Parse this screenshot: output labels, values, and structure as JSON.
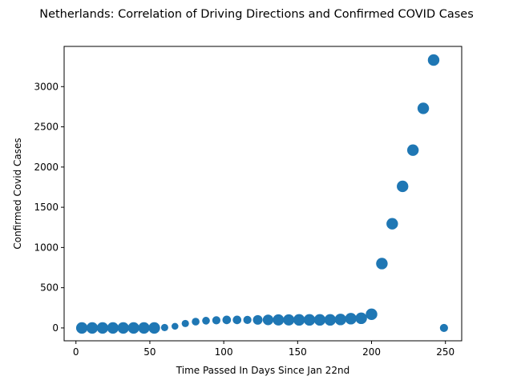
{
  "chart_data": {
    "type": "scatter",
    "title": "Netherlands: Correlation of Driving Directions and Confirmed COVID Cases",
    "xlabel": "Time Passed In Days Since Jan 22nd",
    "ylabel": "Confirmed Covid Cases",
    "xlim": [
      -8,
      261
    ],
    "ylim": [
      -160,
      3500
    ],
    "xticks": [
      0,
      50,
      100,
      150,
      200,
      250
    ],
    "yticks": [
      0,
      500,
      1000,
      1500,
      2000,
      2500,
      3000
    ],
    "grid": false,
    "marker_color": "#1f77b4",
    "points": [
      {
        "x": 4,
        "y": 0,
        "size": 1.0
      },
      {
        "x": 11,
        "y": 0,
        "size": 1.0
      },
      {
        "x": 18,
        "y": 0,
        "size": 1.0
      },
      {
        "x": 25,
        "y": 0,
        "size": 1.0
      },
      {
        "x": 32,
        "y": 0,
        "size": 1.0
      },
      {
        "x": 39,
        "y": 0,
        "size": 1.0
      },
      {
        "x": 46,
        "y": 0,
        "size": 1.0
      },
      {
        "x": 53,
        "y": 0,
        "size": 1.0
      },
      {
        "x": 60,
        "y": 5,
        "size": 0.4
      },
      {
        "x": 67,
        "y": 20,
        "size": 0.35
      },
      {
        "x": 74,
        "y": 55,
        "size": 0.4
      },
      {
        "x": 81,
        "y": 78,
        "size": 0.45
      },
      {
        "x": 88,
        "y": 90,
        "size": 0.45
      },
      {
        "x": 95,
        "y": 95,
        "size": 0.5
      },
      {
        "x": 102,
        "y": 100,
        "size": 0.55
      },
      {
        "x": 109,
        "y": 100,
        "size": 0.55
      },
      {
        "x": 116,
        "y": 100,
        "size": 0.5
      },
      {
        "x": 123,
        "y": 100,
        "size": 0.7
      },
      {
        "x": 130,
        "y": 100,
        "size": 0.85
      },
      {
        "x": 137,
        "y": 100,
        "size": 0.95
      },
      {
        "x": 144,
        "y": 100,
        "size": 0.95
      },
      {
        "x": 151,
        "y": 100,
        "size": 1.0
      },
      {
        "x": 158,
        "y": 100,
        "size": 1.0
      },
      {
        "x": 165,
        "y": 100,
        "size": 1.0
      },
      {
        "x": 172,
        "y": 100,
        "size": 1.0
      },
      {
        "x": 179,
        "y": 105,
        "size": 1.0
      },
      {
        "x": 186,
        "y": 115,
        "size": 1.0
      },
      {
        "x": 193,
        "y": 120,
        "size": 1.0
      },
      {
        "x": 200,
        "y": 170,
        "size": 1.0
      },
      {
        "x": 207,
        "y": 800,
        "size": 1.0
      },
      {
        "x": 214,
        "y": 1295,
        "size": 1.0
      },
      {
        "x": 221,
        "y": 1760,
        "size": 1.0
      },
      {
        "x": 228,
        "y": 2210,
        "size": 1.0
      },
      {
        "x": 235,
        "y": 2730,
        "size": 1.0
      },
      {
        "x": 242,
        "y": 3330,
        "size": 1.0
      },
      {
        "x": 249,
        "y": 0,
        "size": 0.5
      }
    ]
  }
}
